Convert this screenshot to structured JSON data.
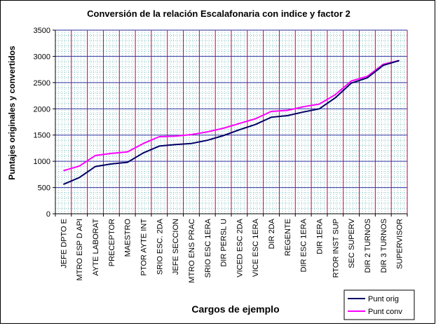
{
  "chart_data": {
    "type": "line",
    "title": "Conversión de la relación Escalafonaria con indice y factor 2",
    "xlabel": "Cargos de ejemplo",
    "ylabel": "Puntajes originales y convertidos",
    "ylim": [
      0,
      3500
    ],
    "yticks": [
      "0",
      "500",
      "1000",
      "1500",
      "2000",
      "2500",
      "3000",
      "3500"
    ],
    "grid": true,
    "legend_position": "bottom-right",
    "categories": [
      "JEFE DPTO E",
      "MTRO ESP D API",
      "AYTE LABORAT",
      "PRECEPTOR",
      "MAESTRO",
      "PTOR AYTE INT",
      "SRIO ESC. 2DA",
      "JEFE SECCION",
      "MTRO ENS PRAC",
      "SRIO ESC 1ERA",
      "DIR PERSL U",
      "VICED ESC 2DA",
      "VICE ESC 1ERA",
      "DIR 2DA",
      "REGENTE",
      "DIR ESC 1ERA",
      "DIR 1ERA",
      "RTOR INST SUP",
      "SEC SUPERV",
      "DIR 2 TURNOS",
      "DIR 3 TURNOS",
      "SUPERVISOR"
    ],
    "series": [
      {
        "name": "Punt orig",
        "color": "#000066",
        "values": [
          560,
          690,
          900,
          950,
          980,
          1160,
          1290,
          1320,
          1340,
          1400,
          1490,
          1600,
          1700,
          1840,
          1870,
          1940,
          2000,
          2210,
          2490,
          2590,
          2830,
          2920
        ]
      },
      {
        "name": "Punt conv",
        "color": "#ff00ff",
        "values": [
          820,
          910,
          1110,
          1150,
          1180,
          1340,
          1470,
          1480,
          1510,
          1560,
          1630,
          1720,
          1810,
          1950,
          1970,
          2040,
          2090,
          2270,
          2530,
          2620,
          2850,
          2920
        ]
      }
    ]
  }
}
